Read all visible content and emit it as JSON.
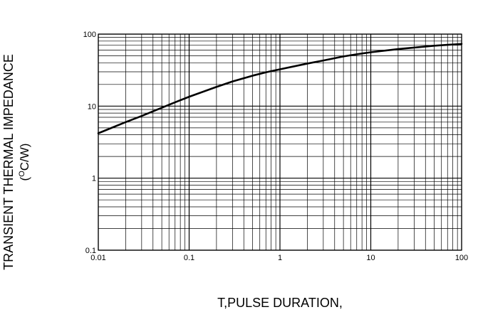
{
  "chart_data": {
    "type": "line",
    "xscale": "log",
    "yscale": "log",
    "xlim": [
      0.01,
      100
    ],
    "ylim": [
      0.1,
      100
    ],
    "grid": true,
    "xlabel": "T,PULSE DURATION,",
    "ylabel": "TRANSIENT THERMAL IMPEDANCE",
    "ylabel_unit_prefix": "(",
    "ylabel_unit_sup": "O",
    "ylabel_unit_rest": "C/W)",
    "x_ticks": [
      {
        "value": 0.01,
        "label": "0.01"
      },
      {
        "value": 0.1,
        "label": "0.1"
      },
      {
        "value": 1,
        "label": "1"
      },
      {
        "value": 10,
        "label": "10"
      },
      {
        "value": 100,
        "label": "100"
      }
    ],
    "y_ticks": [
      {
        "value": 0.1,
        "label": "0.1"
      },
      {
        "value": 1,
        "label": "1"
      },
      {
        "value": 10,
        "label": "10"
      },
      {
        "value": 100,
        "label": "100"
      }
    ],
    "series": [
      {
        "x": [
          0.01,
          0.02,
          0.03,
          0.05,
          0.07,
          0.1,
          0.2,
          0.3,
          0.5,
          0.7,
          1,
          2,
          3,
          5,
          7,
          10,
          20,
          30,
          50,
          70,
          100
        ],
        "y": [
          4.2,
          6.0,
          7.3,
          9.5,
          11.3,
          13.5,
          18.5,
          22,
          26.5,
          29.5,
          32.5,
          39,
          43,
          49,
          52.5,
          56,
          62,
          65,
          69,
          71,
          73
        ]
      }
    ]
  }
}
